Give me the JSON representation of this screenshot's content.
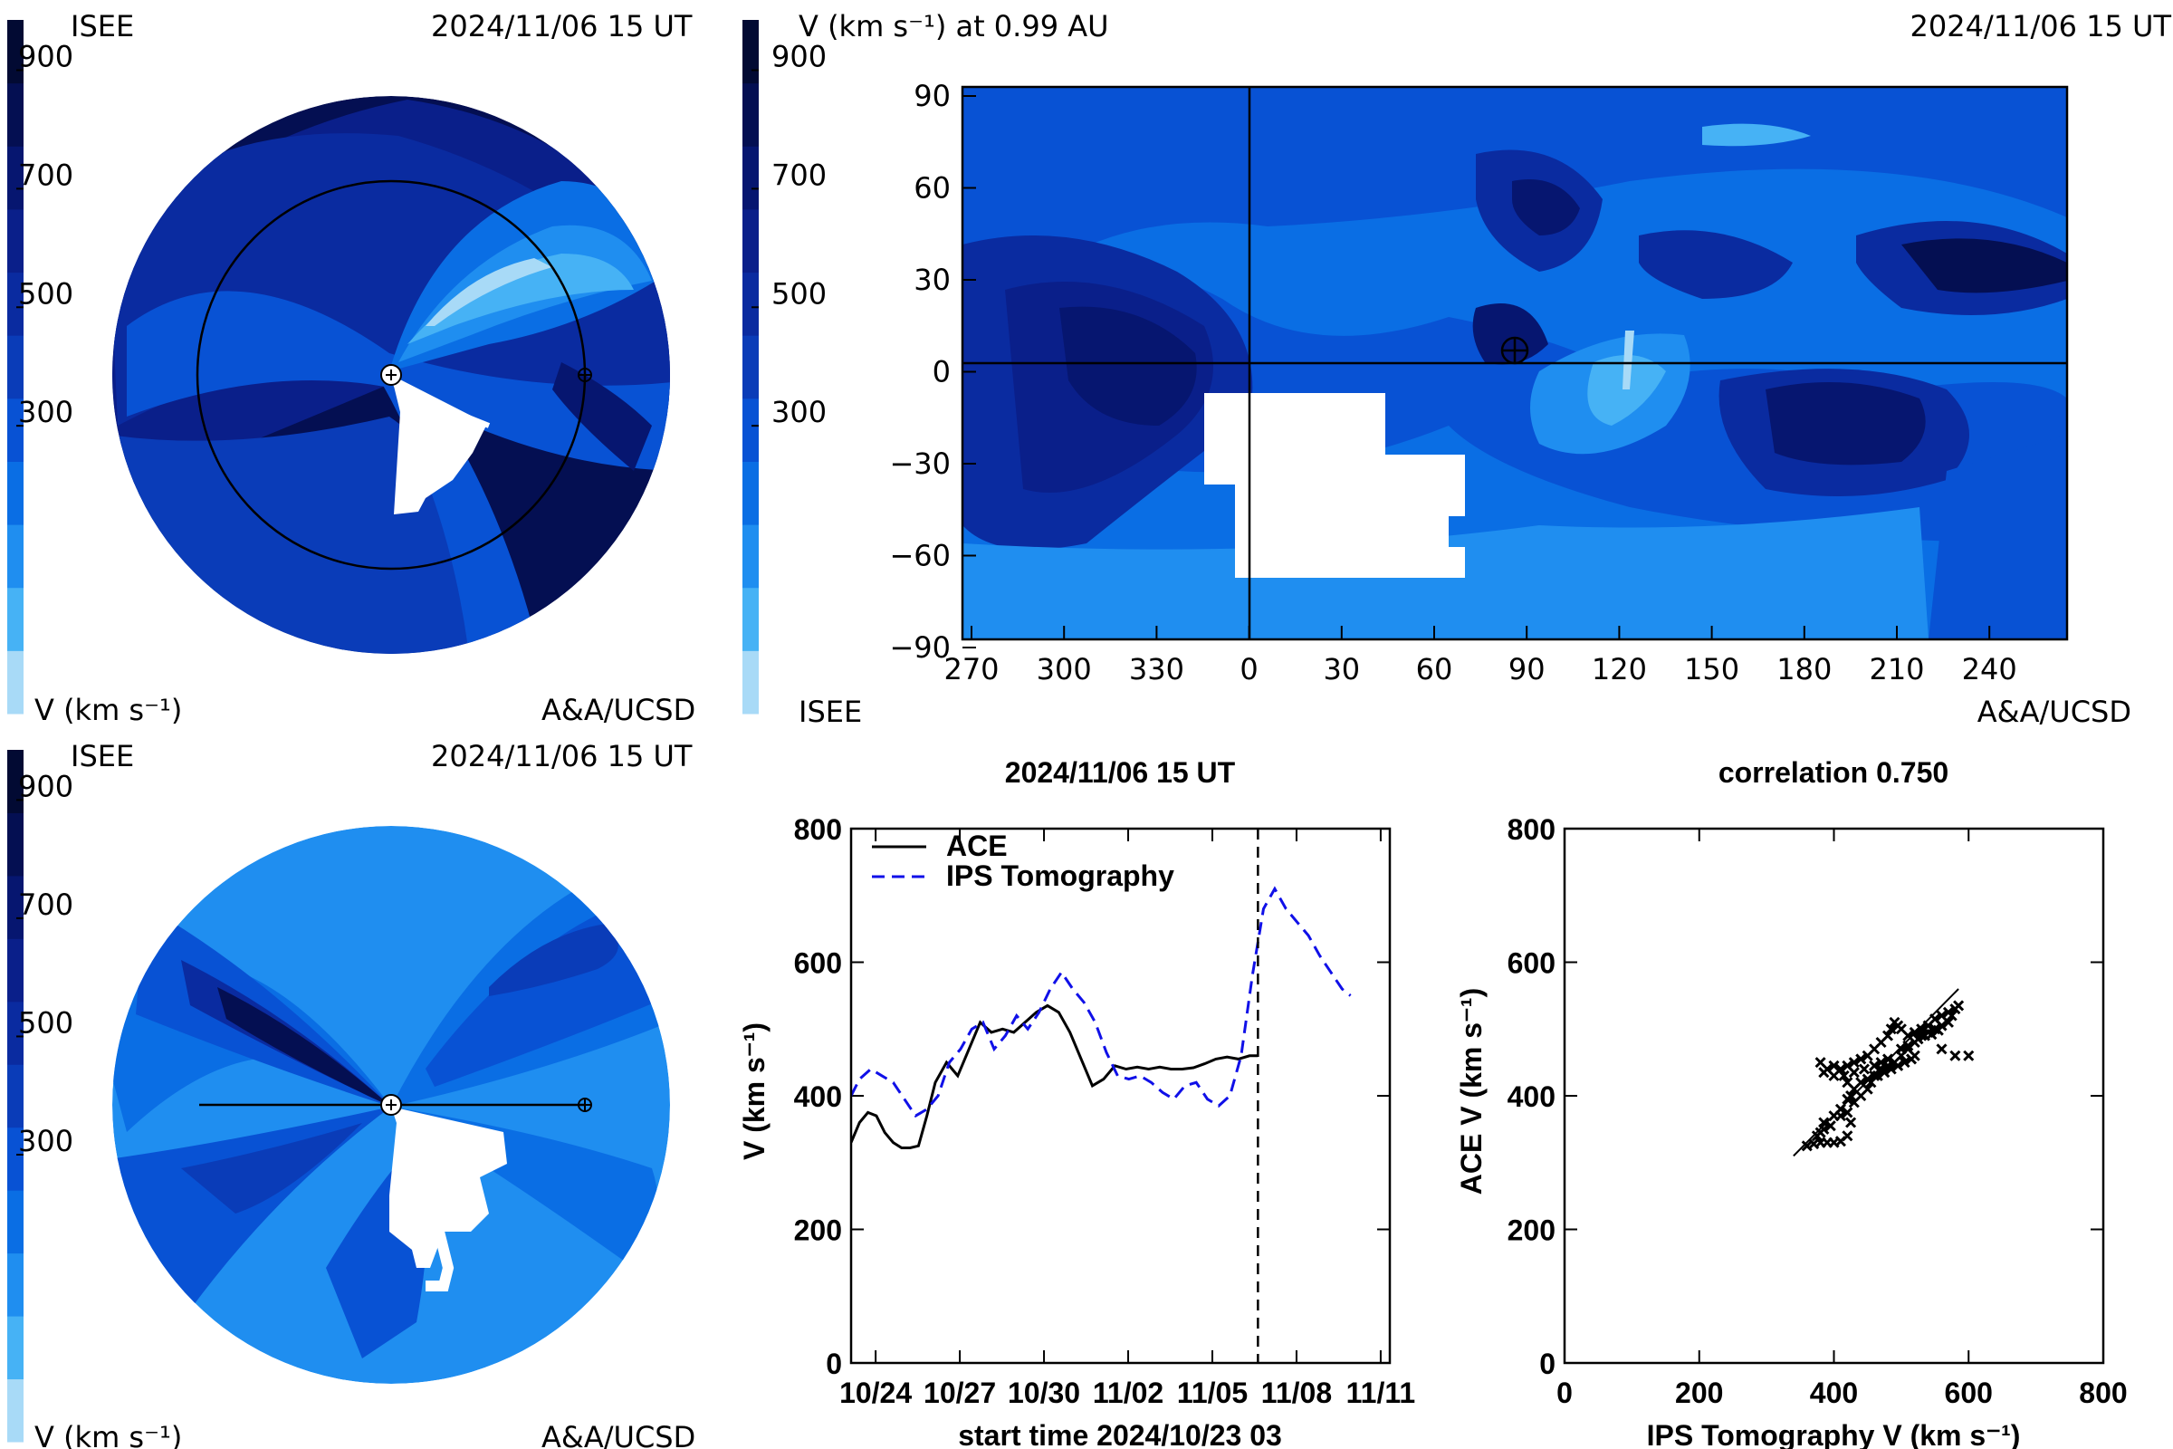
{
  "colorbar": {
    "tick_labels": [
      "900",
      "700",
      "500",
      "300"
    ],
    "colors": [
      "#a8daf7",
      "#46b2f5",
      "#1f8ef0",
      "#0a6ee4",
      "#0852d4",
      "#0a3cb8",
      "#0a2ba0",
      "#0a1f8a",
      "#061670",
      "#040f52",
      "#020a33"
    ]
  },
  "panel_top_left": {
    "org": "ISEE",
    "date": "2024/11/06 15 UT",
    "colorbar_label": "V (km s⁻¹)",
    "credit": "A&A/UCSD"
  },
  "panel_top_right": {
    "title": "V (km s⁻¹) at 0.99 AU",
    "date": "2024/11/06 15 UT",
    "org": "ISEE",
    "credit": "A&A/UCSD",
    "x_tick_labels": [
      "270",
      "300",
      "330",
      "0",
      "30",
      "60",
      "90",
      "120",
      "150",
      "180",
      "210",
      "240"
    ],
    "y_tick_labels": [
      "90",
      "60",
      "30",
      "0",
      "−30",
      "−60",
      "−90"
    ]
  },
  "panel_bottom_left": {
    "org": "ISEE",
    "date": "2024/11/06 15 UT",
    "colorbar_label": "V (km s⁻¹)",
    "credit": "A&A/UCSD"
  },
  "chart_data": [
    {
      "type": "line",
      "title": "2024/11/06 15 UT",
      "xlabel": "start time 2024/10/23 03",
      "ylabel": "V (km s⁻¹)",
      "x_tick_labels": [
        "10/24",
        "10/27",
        "10/30",
        "11/02",
        "11/05",
        "11/08",
        "11/11"
      ],
      "x_tick_days": [
        0.875,
        3.875,
        6.875,
        9.875,
        12.875,
        15.875,
        18.875
      ],
      "xlim_days": [
        0,
        19.2
      ],
      "ylim": [
        0,
        800
      ],
      "y_ticks": [
        0,
        200,
        400,
        600,
        800
      ],
      "marker_day": 14.5,
      "legend": {
        "placement": "top-left"
      },
      "series": [
        {
          "name": "ACE",
          "style": "solid",
          "color": "#000000",
          "x": [
            0,
            0.3,
            0.6,
            0.9,
            1.2,
            1.5,
            1.8,
            2.1,
            2.4,
            2.7,
            3.0,
            3.4,
            3.8,
            4.2,
            4.6,
            5.0,
            5.4,
            5.8,
            6.2,
            6.6,
            7.0,
            7.4,
            7.8,
            8.2,
            8.6,
            9.0,
            9.4,
            9.8,
            10.2,
            10.6,
            11.0,
            11.4,
            11.8,
            12.2,
            12.6,
            13.0,
            13.4,
            13.8,
            14.2,
            14.5
          ],
          "y": [
            330,
            360,
            375,
            370,
            345,
            330,
            322,
            322,
            325,
            370,
            420,
            450,
            430,
            470,
            510,
            495,
            500,
            495,
            510,
            525,
            535,
            525,
            495,
            455,
            415,
            425,
            445,
            440,
            443,
            440,
            443,
            440,
            440,
            442,
            448,
            455,
            458,
            455,
            460,
            460
          ]
        },
        {
          "name": "IPS Tomography",
          "style": "dashed",
          "color": "#1010e8",
          "x": [
            0,
            0.3,
            0.7,
            1.1,
            1.5,
            1.9,
            2.3,
            2.7,
            3.1,
            3.5,
            3.9,
            4.3,
            4.7,
            5.1,
            5.5,
            5.9,
            6.3,
            6.7,
            7.1,
            7.5,
            7.9,
            8.3,
            8.7,
            9.1,
            9.5,
            9.9,
            10.3,
            10.7,
            11.1,
            11.5,
            11.9,
            12.3,
            12.7,
            13.1,
            13.5,
            13.9,
            14.3,
            14.7,
            15.1,
            15.5,
            15.9,
            16.3,
            16.7,
            17.1,
            17.5,
            17.8
          ],
          "y": [
            400,
            425,
            440,
            430,
            420,
            395,
            370,
            380,
            400,
            450,
            470,
            500,
            510,
            470,
            490,
            520,
            500,
            525,
            560,
            585,
            560,
            540,
            510,
            465,
            430,
            425,
            430,
            420,
            405,
            395,
            415,
            420,
            395,
            385,
            400,
            460,
            580,
            680,
            710,
            680,
            660,
            640,
            610,
            585,
            560,
            550
          ]
        }
      ]
    },
    {
      "type": "scatter",
      "title": "correlation 0.750",
      "xlabel": "IPS Tomography V (km s⁻¹)",
      "ylabel": "ACE V (km s⁻¹)",
      "xlim": [
        0,
        800
      ],
      "ylim": [
        0,
        800
      ],
      "x_ticks": [
        0,
        200,
        400,
        600,
        800
      ],
      "y_ticks": [
        0,
        200,
        400,
        600,
        800
      ],
      "fit_line": {
        "x": [
          340,
          585
        ],
        "y": [
          310,
          560
        ]
      },
      "points": [
        [
          360,
          325
        ],
        [
          370,
          328
        ],
        [
          380,
          330
        ],
        [
          390,
          330
        ],
        [
          400,
          330
        ],
        [
          410,
          332
        ],
        [
          420,
          340
        ],
        [
          425,
          360
        ],
        [
          420,
          375
        ],
        [
          410,
          370
        ],
        [
          395,
          355
        ],
        [
          385,
          350
        ],
        [
          380,
          345
        ],
        [
          375,
          340
        ],
        [
          385,
          360
        ],
        [
          400,
          370
        ],
        [
          410,
          380
        ],
        [
          420,
          395
        ],
        [
          430,
          410
        ],
        [
          440,
          420
        ],
        [
          450,
          425
        ],
        [
          460,
          430
        ],
        [
          470,
          440
        ],
        [
          480,
          445
        ],
        [
          490,
          450
        ],
        [
          500,
          460
        ],
        [
          510,
          470
        ],
        [
          520,
          480
        ],
        [
          530,
          490
        ],
        [
          540,
          495
        ],
        [
          550,
          500
        ],
        [
          560,
          505
        ],
        [
          570,
          510
        ],
        [
          575,
          520
        ],
        [
          580,
          530
        ],
        [
          585,
          535
        ],
        [
          570,
          525
        ],
        [
          560,
          520
        ],
        [
          550,
          515
        ],
        [
          540,
          505
        ],
        [
          530,
          500
        ],
        [
          520,
          495
        ],
        [
          510,
          490
        ],
        [
          500,
          500
        ],
        [
          495,
          505
        ],
        [
          490,
          510
        ],
        [
          485,
          500
        ],
        [
          480,
          490
        ],
        [
          470,
          480
        ],
        [
          460,
          470
        ],
        [
          450,
          460
        ],
        [
          440,
          455
        ],
        [
          430,
          450
        ],
        [
          420,
          445
        ],
        [
          410,
          440
        ],
        [
          400,
          445
        ],
        [
          390,
          440
        ],
        [
          380,
          450
        ],
        [
          385,
          435
        ],
        [
          400,
          430
        ],
        [
          415,
          430
        ],
        [
          430,
          435
        ],
        [
          445,
          440
        ],
        [
          460,
          445
        ],
        [
          470,
          450
        ],
        [
          480,
          455
        ],
        [
          500,
          470
        ],
        [
          510,
          475
        ],
        [
          525,
          485
        ],
        [
          535,
          490
        ],
        [
          545,
          492
        ],
        [
          555,
          498
        ],
        [
          560,
          470
        ],
        [
          580,
          460
        ],
        [
          600,
          460
        ],
        [
          420,
          420
        ],
        [
          425,
          400
        ],
        [
          430,
          390
        ],
        [
          440,
          400
        ],
        [
          450,
          410
        ],
        [
          455,
          420
        ],
        [
          465,
          430
        ],
        [
          475,
          435
        ],
        [
          485,
          440
        ],
        [
          495,
          445
        ],
        [
          505,
          450
        ],
        [
          515,
          455
        ],
        [
          520,
          460
        ]
      ]
    }
  ]
}
